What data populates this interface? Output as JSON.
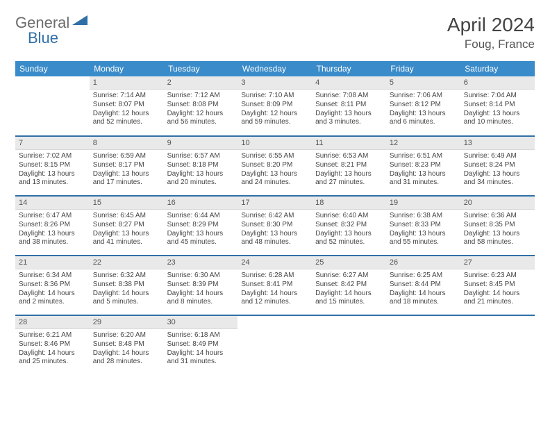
{
  "brand": {
    "part1": "General",
    "part2": "Blue"
  },
  "title": "April 2024",
  "location": "Foug, France",
  "colors": {
    "header_bg": "#3a8bc9",
    "header_text": "#ffffff",
    "rule": "#2f6fa7",
    "daynum_bg": "#e9e9e9",
    "text": "#444444",
    "brand_grey": "#6b6b6b",
    "brand_blue": "#2f6fa7"
  },
  "weekdays": [
    "Sunday",
    "Monday",
    "Tuesday",
    "Wednesday",
    "Thursday",
    "Friday",
    "Saturday"
  ],
  "first_weekday_index": 1,
  "num_days": 30,
  "days": {
    "1": {
      "sunrise": "7:14 AM",
      "sunset": "8:07 PM",
      "daylight": "12 hours and 52 minutes."
    },
    "2": {
      "sunrise": "7:12 AM",
      "sunset": "8:08 PM",
      "daylight": "12 hours and 56 minutes."
    },
    "3": {
      "sunrise": "7:10 AM",
      "sunset": "8:09 PM",
      "daylight": "12 hours and 59 minutes."
    },
    "4": {
      "sunrise": "7:08 AM",
      "sunset": "8:11 PM",
      "daylight": "13 hours and 3 minutes."
    },
    "5": {
      "sunrise": "7:06 AM",
      "sunset": "8:12 PM",
      "daylight": "13 hours and 6 minutes."
    },
    "6": {
      "sunrise": "7:04 AM",
      "sunset": "8:14 PM",
      "daylight": "13 hours and 10 minutes."
    },
    "7": {
      "sunrise": "7:02 AM",
      "sunset": "8:15 PM",
      "daylight": "13 hours and 13 minutes."
    },
    "8": {
      "sunrise": "6:59 AM",
      "sunset": "8:17 PM",
      "daylight": "13 hours and 17 minutes."
    },
    "9": {
      "sunrise": "6:57 AM",
      "sunset": "8:18 PM",
      "daylight": "13 hours and 20 minutes."
    },
    "10": {
      "sunrise": "6:55 AM",
      "sunset": "8:20 PM",
      "daylight": "13 hours and 24 minutes."
    },
    "11": {
      "sunrise": "6:53 AM",
      "sunset": "8:21 PM",
      "daylight": "13 hours and 27 minutes."
    },
    "12": {
      "sunrise": "6:51 AM",
      "sunset": "8:23 PM",
      "daylight": "13 hours and 31 minutes."
    },
    "13": {
      "sunrise": "6:49 AM",
      "sunset": "8:24 PM",
      "daylight": "13 hours and 34 minutes."
    },
    "14": {
      "sunrise": "6:47 AM",
      "sunset": "8:26 PM",
      "daylight": "13 hours and 38 minutes."
    },
    "15": {
      "sunrise": "6:45 AM",
      "sunset": "8:27 PM",
      "daylight": "13 hours and 41 minutes."
    },
    "16": {
      "sunrise": "6:44 AM",
      "sunset": "8:29 PM",
      "daylight": "13 hours and 45 minutes."
    },
    "17": {
      "sunrise": "6:42 AM",
      "sunset": "8:30 PM",
      "daylight": "13 hours and 48 minutes."
    },
    "18": {
      "sunrise": "6:40 AM",
      "sunset": "8:32 PM",
      "daylight": "13 hours and 52 minutes."
    },
    "19": {
      "sunrise": "6:38 AM",
      "sunset": "8:33 PM",
      "daylight": "13 hours and 55 minutes."
    },
    "20": {
      "sunrise": "6:36 AM",
      "sunset": "8:35 PM",
      "daylight": "13 hours and 58 minutes."
    },
    "21": {
      "sunrise": "6:34 AM",
      "sunset": "8:36 PM",
      "daylight": "14 hours and 2 minutes."
    },
    "22": {
      "sunrise": "6:32 AM",
      "sunset": "8:38 PM",
      "daylight": "14 hours and 5 minutes."
    },
    "23": {
      "sunrise": "6:30 AM",
      "sunset": "8:39 PM",
      "daylight": "14 hours and 8 minutes."
    },
    "24": {
      "sunrise": "6:28 AM",
      "sunset": "8:41 PM",
      "daylight": "14 hours and 12 minutes."
    },
    "25": {
      "sunrise": "6:27 AM",
      "sunset": "8:42 PM",
      "daylight": "14 hours and 15 minutes."
    },
    "26": {
      "sunrise": "6:25 AM",
      "sunset": "8:44 PM",
      "daylight": "14 hours and 18 minutes."
    },
    "27": {
      "sunrise": "6:23 AM",
      "sunset": "8:45 PM",
      "daylight": "14 hours and 21 minutes."
    },
    "28": {
      "sunrise": "6:21 AM",
      "sunset": "8:46 PM",
      "daylight": "14 hours and 25 minutes."
    },
    "29": {
      "sunrise": "6:20 AM",
      "sunset": "8:48 PM",
      "daylight": "14 hours and 28 minutes."
    },
    "30": {
      "sunrise": "6:18 AM",
      "sunset": "8:49 PM",
      "daylight": "14 hours and 31 minutes."
    }
  },
  "labels": {
    "sunrise": "Sunrise:",
    "sunset": "Sunset:",
    "daylight": "Daylight:"
  }
}
